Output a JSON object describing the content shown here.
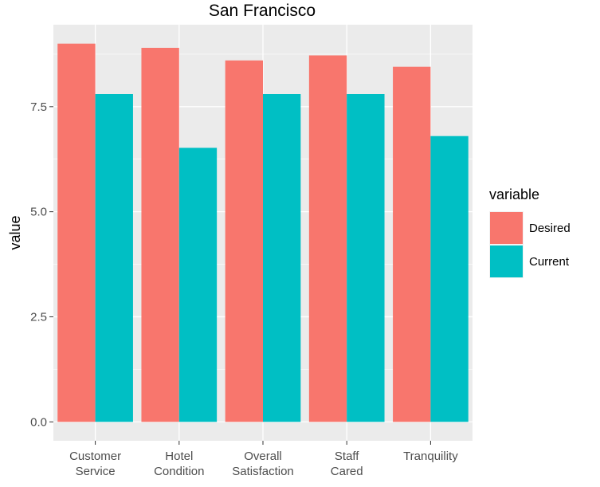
{
  "chart_data": {
    "type": "bar",
    "title": "San Francisco",
    "xlabel": "",
    "ylabel": "value",
    "categories": [
      [
        "Customer",
        "Service"
      ],
      [
        "Hotel",
        "Condition"
      ],
      [
        "Overall",
        "Satisfaction"
      ],
      [
        "Staff",
        "Cared"
      ],
      [
        "Tranquility"
      ]
    ],
    "series": [
      {
        "name": "Desired",
        "color": "#F8766D",
        "values": [
          9.0,
          8.9,
          8.6,
          8.72,
          8.45
        ]
      },
      {
        "name": "Current",
        "color": "#00BFC4",
        "values": [
          7.8,
          6.52,
          7.8,
          7.8,
          6.8
        ]
      }
    ],
    "yticks": [
      0.0,
      2.5,
      5.0,
      7.5
    ],
    "ytick_labels": [
      "0.0",
      "2.5",
      "5.0",
      "7.5"
    ],
    "ylim": [
      -0.45,
      9.45
    ],
    "grid": true,
    "legend": {
      "title": "variable",
      "position": "right"
    }
  }
}
